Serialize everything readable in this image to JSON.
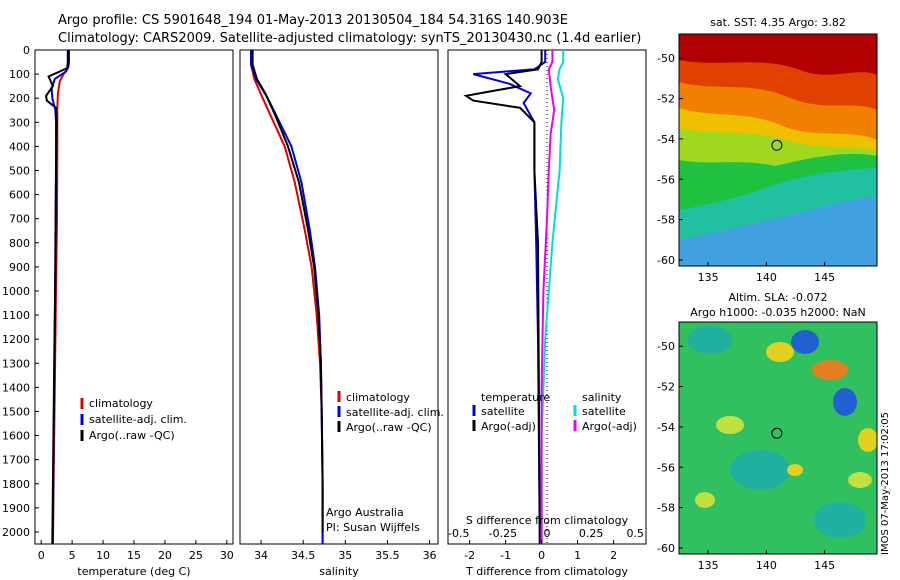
{
  "header": {
    "title_line1": "Argo profile: CS 5901648_194 01-May-2013 20130504_184 54.316S 140.903E",
    "title_line2": "Climatology: CARS2009. Satellite-adjusted climatology: synTS_20130430.nc (1.4d earlier)"
  },
  "colors": {
    "climatology": "#e00000",
    "satellite": "#0000e0",
    "argo": "#000000",
    "salinity_satellite": "#00dddd",
    "salinity_argo": "#ee00ee"
  },
  "chart_data": [
    {
      "type": "line",
      "name": "temperature-panel",
      "xlabel": "temperature (deg C)",
      "ylabel": "",
      "xlim": [
        -1,
        31
      ],
      "ylim": [
        2050,
        0
      ],
      "x_ticks": [
        0,
        5,
        10,
        15,
        20,
        25,
        30
      ],
      "y_ticks": [
        0,
        100,
        200,
        300,
        400,
        500,
        600,
        700,
        800,
        900,
        1000,
        1100,
        1200,
        1300,
        1400,
        1500,
        1600,
        1700,
        1800,
        1900,
        2000
      ],
      "legend": [
        "climatology",
        "satellite-adj. clim.",
        "Argo(..raw -QC)"
      ],
      "series": [
        {
          "name": "climatology",
          "color": "#e00000",
          "points": [
            [
              4.4,
              0
            ],
            [
              4.4,
              50
            ],
            [
              4.2,
              80
            ],
            [
              3.6,
              100
            ],
            [
              3.0,
              130
            ],
            [
              2.7,
              180
            ],
            [
              2.6,
              250
            ],
            [
              2.6,
              400
            ],
            [
              2.55,
              700
            ],
            [
              2.4,
              1000
            ],
            [
              2.2,
              1400
            ],
            [
              2.0,
              1800
            ],
            [
              1.9,
              2050
            ]
          ]
        },
        {
          "name": "satellite-adj. clim.",
          "color": "#0000e0",
          "points": [
            [
              4.5,
              0
            ],
            [
              4.5,
              50
            ],
            [
              4.4,
              70
            ],
            [
              4.0,
              90
            ],
            [
              2.2,
              120
            ],
            [
              1.7,
              160
            ],
            [
              1.8,
              200
            ],
            [
              2.3,
              250
            ],
            [
              2.4,
              300
            ],
            [
              2.4,
              500
            ],
            [
              2.3,
              800
            ],
            [
              2.2,
              1200
            ],
            [
              2.0,
              1600
            ],
            [
              1.9,
              2050
            ]
          ]
        },
        {
          "name": "Argo(..raw -QC)",
          "color": "#000000",
          "points": [
            [
              4.3,
              0
            ],
            [
              4.3,
              50
            ],
            [
              4.2,
              75
            ],
            [
              1.2,
              110
            ],
            [
              1.9,
              150
            ],
            [
              0.8,
              190
            ],
            [
              0.9,
              210
            ],
            [
              2.4,
              240
            ],
            [
              2.5,
              300
            ],
            [
              2.4,
              500
            ],
            [
              2.3,
              900
            ],
            [
              2.1,
              1300
            ],
            [
              1.9,
              1800
            ],
            [
              1.8,
              2050
            ]
          ]
        }
      ]
    },
    {
      "type": "line",
      "name": "salinity-panel",
      "xlabel": "salinity",
      "ylabel": "",
      "xlim": [
        33.75,
        36.1
      ],
      "ylim": [
        2050,
        0
      ],
      "x_ticks": [
        34,
        34.5,
        35,
        35.5,
        36
      ],
      "x_tick_labels": [
        "34",
        "34.5",
        "35",
        "35.5",
        "36"
      ],
      "legend": [
        "climatology",
        "satellite-adj. clim.",
        "Argo(..raw -QC)"
      ],
      "annotation_line1": "Argo Australia",
      "annotation_line2": "PI: Susan Wijffels",
      "series": [
        {
          "name": "climatology",
          "color": "#e00000",
          "points": [
            [
              33.88,
              0
            ],
            [
              33.88,
              60
            ],
            [
              33.92,
              120
            ],
            [
              34.02,
              200
            ],
            [
              34.15,
              300
            ],
            [
              34.28,
              400
            ],
            [
              34.4,
              550
            ],
            [
              34.52,
              750
            ],
            [
              34.6,
              900
            ],
            [
              34.66,
              1100
            ],
            [
              34.7,
              1300
            ],
            [
              34.72,
              1500
            ],
            [
              34.73,
              1800
            ],
            [
              34.73,
              2050
            ]
          ]
        },
        {
          "name": "satellite-adj. clim.",
          "color": "#0000e0",
          "points": [
            [
              33.88,
              0
            ],
            [
              33.88,
              60
            ],
            [
              33.94,
              120
            ],
            [
              34.08,
              200
            ],
            [
              34.22,
              300
            ],
            [
              34.36,
              400
            ],
            [
              34.48,
              550
            ],
            [
              34.58,
              750
            ],
            [
              34.64,
              900
            ],
            [
              34.69,
              1100
            ],
            [
              34.71,
              1300
            ],
            [
              34.72,
              1500
            ],
            [
              34.73,
              1800
            ],
            [
              34.73,
              2050
            ]
          ]
        },
        {
          "name": "Argo(..raw -QC)",
          "color": "#000000",
          "points": [
            [
              33.9,
              0
            ],
            [
              33.9,
              60
            ],
            [
              33.95,
              120
            ],
            [
              34.05,
              180
            ],
            [
              34.18,
              280
            ],
            [
              34.32,
              400
            ],
            [
              34.45,
              550
            ],
            [
              34.56,
              750
            ],
            [
              34.63,
              900
            ],
            [
              34.68,
              1100
            ],
            [
              34.71,
              1300
            ],
            [
              34.72,
              1500
            ],
            [
              34.73,
              1800
            ],
            [
              34.73,
              2000
            ]
          ]
        }
      ]
    },
    {
      "type": "line",
      "name": "difference-panel",
      "xlabel": "T difference from climatology",
      "xlabel_top": "S difference from climatology",
      "xlim": [
        -2.6,
        2.9
      ],
      "ylim": [
        2050,
        0
      ],
      "x_ticks": [
        -2,
        -1,
        0,
        1,
        2
      ],
      "x_tick_labels": [
        "-2",
        "-1",
        "0",
        "1",
        "2"
      ],
      "s_ticks": [
        -0.5,
        -0.25,
        0,
        0.25,
        0.5
      ],
      "s_tick_labels": [
        "-0.5",
        "-0.25",
        "0",
        "0.25",
        "0.5"
      ],
      "legend_left_title": "temperature",
      "legend_right_title": "salinity",
      "legend_left": [
        "satellite",
        "Argo(-adj)"
      ],
      "legend_right": [
        "satellite",
        "Argo(-adj)"
      ],
      "series": [
        {
          "name": "T satellite",
          "color": "#0000e0",
          "points": [
            [
              0.1,
              0
            ],
            [
              0.1,
              50
            ],
            [
              -0.2,
              80
            ],
            [
              -1.9,
              100
            ],
            [
              -0.9,
              140
            ],
            [
              -0.3,
              180
            ],
            [
              -0.5,
              220
            ],
            [
              -0.2,
              300
            ],
            [
              -0.2,
              500
            ],
            [
              -0.15,
              800
            ],
            [
              -0.1,
              1200
            ],
            [
              -0.05,
              2050
            ]
          ]
        },
        {
          "name": "T Argo(-adj)",
          "color": "#000000",
          "points": [
            [
              0.0,
              0
            ],
            [
              0.0,
              50
            ],
            [
              -0.1,
              80
            ],
            [
              -1.0,
              100
            ],
            [
              -0.6,
              150
            ],
            [
              -2.1,
              190
            ],
            [
              -1.9,
              210
            ],
            [
              -0.6,
              240
            ],
            [
              -0.2,
              300
            ],
            [
              -0.2,
              500
            ],
            [
              -0.1,
              800
            ],
            [
              -0.05,
              2050
            ]
          ]
        },
        {
          "name": "S satellite",
          "color": "#00dddd",
          "points": [
            [
              0.6,
              0
            ],
            [
              0.6,
              50
            ],
            [
              0.5,
              80
            ],
            [
              0.45,
              120
            ],
            [
              0.6,
              200
            ],
            [
              0.55,
              300
            ],
            [
              0.5,
              500
            ],
            [
              0.3,
              800
            ],
            [
              0.1,
              1200
            ],
            [
              0.0,
              1600
            ],
            [
              0.0,
              2050
            ]
          ]
        },
        {
          "name": "S Argo(-adj)",
          "color": "#ee00ee",
          "points": [
            [
              0.3,
              0
            ],
            [
              0.3,
              50
            ],
            [
              0.2,
              80
            ],
            [
              0.25,
              150
            ],
            [
              0.35,
              250
            ],
            [
              0.25,
              350
            ],
            [
              0.2,
              500
            ],
            [
              0.15,
              700
            ],
            [
              0.05,
              1000
            ],
            [
              0.0,
              1400
            ],
            [
              0.0,
              2050
            ]
          ]
        }
      ]
    },
    {
      "type": "heatmap",
      "name": "sst-map",
      "title": "sat. SST: 4.35  Argo: 3.82",
      "xlim": [
        132.5,
        149.5
      ],
      "ylim": [
        -60.3,
        -48.8
      ],
      "x_ticks": [
        135,
        140,
        145
      ],
      "y_ticks": [
        -50,
        -52,
        -54,
        -56,
        -58,
        -60
      ],
      "marker": {
        "lon": 140.903,
        "lat": -54.316
      }
    },
    {
      "type": "heatmap",
      "name": "sla-map",
      "title_line1": "Altim. SLA: -0.072",
      "title_line2": "Argo h1000: -0.035 h2000: NaN",
      "xlim": [
        132.5,
        149.5
      ],
      "ylim": [
        -60.3,
        -48.8
      ],
      "x_ticks": [
        135,
        140,
        145
      ],
      "y_ticks": [
        -50,
        -52,
        -54,
        -56,
        -58,
        -60
      ],
      "marker": {
        "lon": 140.903,
        "lat": -54.316
      }
    }
  ],
  "footer": {
    "stamp": "IMOS 07-May-2013 17:02:05"
  }
}
